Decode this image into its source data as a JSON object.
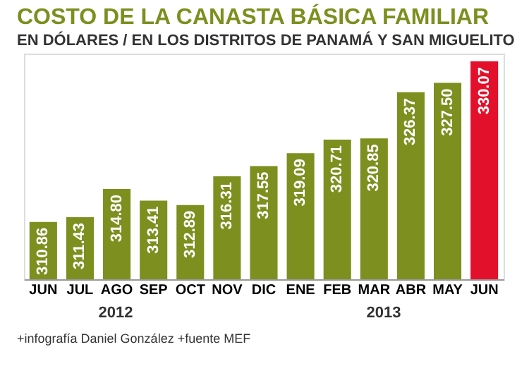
{
  "chart_data": {
    "type": "bar",
    "title": "COSTO DE LA CANASTA BÁSICA FAMILIAR",
    "subtitle": "EN DÓLARES / EN LOS DISTRITOS DE PANAMÁ Y SAN MIGUELITO",
    "categories": [
      "JUN",
      "JUL",
      "AGO",
      "SEP",
      "OCT",
      "NOV",
      "DIC",
      "ENE",
      "FEB",
      "MAR",
      "ABR",
      "MAY",
      "JUN"
    ],
    "values": [
      310.86,
      311.43,
      314.8,
      313.41,
      312.89,
      316.31,
      317.55,
      319.09,
      320.71,
      320.85,
      326.37,
      327.5,
      330.07
    ],
    "colors": [
      "#7d8f1f",
      "#7d8f1f",
      "#7d8f1f",
      "#7d8f1f",
      "#7d8f1f",
      "#7d8f1f",
      "#7d8f1f",
      "#7d8f1f",
      "#7d8f1f",
      "#7d8f1f",
      "#7d8f1f",
      "#7d8f1f",
      "#e3102b"
    ],
    "value_labels": [
      "310.86",
      "311.43",
      "314.80",
      "313.41",
      "312.89",
      "316.31",
      "317.55",
      "319.09",
      "320.71",
      "320.85",
      "326.37",
      "327.50",
      "330.07"
    ],
    "ylim": [
      304,
      331
    ],
    "tick_labels": "x",
    "annotations": [
      "2012",
      "2013",
      "+infografía Daniel González +fuente MEF"
    ]
  }
}
